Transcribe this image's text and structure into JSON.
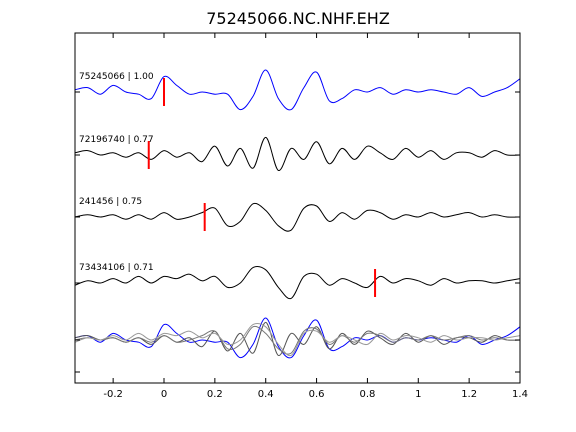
{
  "chart_data": {
    "type": "line",
    "title": "75245066.NC.NHF.EHZ",
    "xlabel": "",
    "ylabel": "",
    "xlim": [
      -0.35,
      1.4
    ],
    "xticks": [
      -0.2,
      0,
      0.2,
      0.4,
      0.6,
      0.8,
      1,
      1.2,
      1.4
    ],
    "xtick_labels": [
      "-0.2",
      "0",
      "0.2",
      "0.4",
      "0.6",
      "0.8",
      "1",
      "1.2",
      "1.4"
    ],
    "grid": false,
    "series": [
      {
        "name": "75245066 | 1.00",
        "color": "#0000ff",
        "pick_time": 0.0,
        "x": [
          -0.35,
          -0.3,
          -0.25,
          -0.2,
          -0.15,
          -0.1,
          -0.05,
          0,
          0.05,
          0.1,
          0.15,
          0.2,
          0.25,
          0.3,
          0.35,
          0.4,
          0.45,
          0.5,
          0.55,
          0.6,
          0.65,
          0.7,
          0.75,
          0.8,
          0.85,
          0.9,
          0.95,
          1,
          1.05,
          1.1,
          1.15,
          1.2,
          1.25,
          1.3,
          1.35,
          1.4
        ],
        "y": [
          0.1,
          0.2,
          -0.1,
          0.3,
          0.0,
          -0.1,
          -0.3,
          0.7,
          0.3,
          -0.1,
          0.0,
          -0.1,
          -0.1,
          -0.8,
          -0.2,
          1.0,
          -0.3,
          -0.8,
          0.2,
          0.9,
          -0.4,
          -0.3,
          0.1,
          0.0,
          0.2,
          -0.1,
          0.1,
          0.0,
          0.1,
          0.0,
          -0.1,
          0.2,
          -0.2,
          0.0,
          0.2,
          0.6
        ]
      },
      {
        "name": "72196740 | 0.77",
        "color": "#000000",
        "pick_time": -0.06,
        "x": [
          -0.35,
          -0.3,
          -0.25,
          -0.2,
          -0.15,
          -0.1,
          -0.05,
          0,
          0.05,
          0.1,
          0.15,
          0.2,
          0.25,
          0.3,
          0.35,
          0.4,
          0.45,
          0.5,
          0.55,
          0.6,
          0.65,
          0.7,
          0.75,
          0.8,
          0.85,
          0.9,
          0.95,
          1,
          1.05,
          1.1,
          1.15,
          1.2,
          1.25,
          1.3,
          1.35,
          1.4
        ],
        "y": [
          0.1,
          0.2,
          0.0,
          0.1,
          -0.1,
          0.1,
          -0.2,
          0.2,
          -0.1,
          0.1,
          -0.3,
          0.4,
          -0.5,
          0.3,
          -0.6,
          0.8,
          -0.7,
          0.3,
          -0.2,
          0.6,
          -0.4,
          0.3,
          -0.2,
          0.4,
          0.1,
          -0.2,
          0.3,
          -0.1,
          0.2,
          -0.2,
          0.1,
          0.1,
          -0.1,
          0.2,
          0.0,
          0.0
        ]
      },
      {
        "name": "241456 | 0.75",
        "color": "#000000",
        "pick_time": 0.16,
        "x": [
          -0.35,
          -0.3,
          -0.25,
          -0.2,
          -0.15,
          -0.1,
          -0.05,
          0,
          0.05,
          0.1,
          0.15,
          0.2,
          0.25,
          0.3,
          0.35,
          0.4,
          0.45,
          0.5,
          0.55,
          0.6,
          0.65,
          0.7,
          0.75,
          0.8,
          0.85,
          0.9,
          0.95,
          1,
          1.05,
          1.1,
          1.15,
          1.2,
          1.25,
          1.3,
          1.35,
          1.4
        ],
        "y": [
          0.0,
          0.1,
          0.0,
          0.1,
          -0.1,
          0.1,
          -0.1,
          0.2,
          -0.1,
          0.0,
          0.2,
          0.4,
          -0.4,
          -0.2,
          0.6,
          0.3,
          -0.4,
          -0.6,
          0.4,
          0.5,
          -0.2,
          0.2,
          -0.1,
          0.3,
          0.2,
          -0.1,
          0.1,
          0.0,
          0.2,
          0.0,
          0.1,
          0.2,
          0.0,
          0.1,
          0.0,
          0.0
        ]
      },
      {
        "name": "73434106 | 0.71",
        "color": "#000000",
        "pick_time": 0.83,
        "x": [
          -0.35,
          -0.3,
          -0.25,
          -0.2,
          -0.15,
          -0.1,
          -0.05,
          0,
          0.05,
          0.1,
          0.15,
          0.2,
          0.25,
          0.3,
          0.35,
          0.4,
          0.45,
          0.5,
          0.55,
          0.6,
          0.65,
          0.7,
          0.75,
          0.8,
          0.85,
          0.9,
          0.95,
          1,
          1.05,
          1.1,
          1.15,
          1.2,
          1.25,
          1.3,
          1.35,
          1.4
        ],
        "y": [
          -0.1,
          0.1,
          0.0,
          0.2,
          0.0,
          0.3,
          0.0,
          0.3,
          0.2,
          0.4,
          0.1,
          0.3,
          -0.2,
          0.0,
          0.7,
          0.6,
          -0.2,
          -0.7,
          0.3,
          0.4,
          -0.1,
          0.2,
          0.0,
          -0.2,
          0.3,
          0.0,
          0.2,
          0.1,
          -0.1,
          0.2,
          0.0,
          0.1,
          0.1,
          0.0,
          0.1,
          0.2
        ]
      }
    ]
  }
}
